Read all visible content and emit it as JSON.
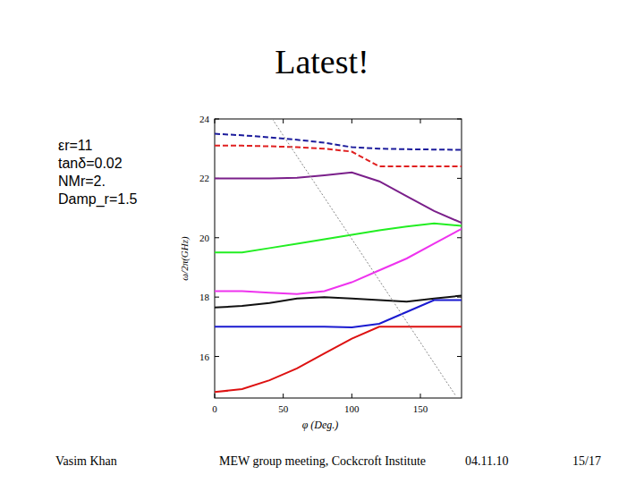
{
  "slide": {
    "title": "Latest!",
    "params": [
      "εr=11",
      "tanδ=0.02",
      "NMr=2.",
      "Damp_r=1.5"
    ],
    "footer": {
      "author": "Vasim Khan",
      "event": "MEW group meeting, Cockcroft Institute",
      "date": "04.11.10",
      "page": "15/17"
    }
  },
  "chart_data": {
    "type": "line",
    "x_label": "φ (Deg.)",
    "y_label": "ω/2π(GHz)",
    "xlim": [
      0,
      180
    ],
    "ylim": [
      14.6,
      24
    ],
    "xticks": [
      0,
      50,
      100,
      150
    ],
    "yticks": [
      16,
      18,
      20,
      22,
      24
    ],
    "grid": false,
    "series": [
      {
        "color": "#1c1c9c",
        "line_style": "dashed",
        "x": [
          0,
          20,
          40,
          60,
          80,
          100,
          120,
          140,
          160,
          180
        ],
        "values": [
          23.5,
          23.45,
          23.38,
          23.3,
          23.2,
          23.05,
          23.0,
          22.98,
          22.97,
          22.96
        ]
      },
      {
        "color": "#e02020",
        "line_style": "dashed",
        "x": [
          0,
          20,
          40,
          60,
          80,
          100,
          120,
          140,
          160,
          180
        ],
        "values": [
          23.1,
          23.1,
          23.08,
          23.05,
          23.0,
          22.9,
          22.4,
          22.4,
          22.4,
          22.4
        ]
      },
      {
        "color": "#7a1f8a",
        "line_style": "solid",
        "x": [
          0,
          20,
          40,
          60,
          80,
          100,
          120,
          140,
          160,
          180
        ],
        "values": [
          22.0,
          22.0,
          22.0,
          22.02,
          22.1,
          22.2,
          21.9,
          21.4,
          20.9,
          20.5
        ]
      },
      {
        "color": "#22ee22",
        "line_style": "solid",
        "x": [
          0,
          20,
          40,
          60,
          80,
          100,
          120,
          140,
          160,
          180
        ],
        "values": [
          19.5,
          19.5,
          19.65,
          19.8,
          19.95,
          20.1,
          20.25,
          20.38,
          20.48,
          20.4
        ]
      },
      {
        "color": "#ee33ee",
        "line_style": "solid",
        "x": [
          0,
          20,
          40,
          60,
          80,
          100,
          120,
          140,
          160,
          180
        ],
        "values": [
          18.2,
          18.2,
          18.15,
          18.1,
          18.2,
          18.5,
          18.9,
          19.3,
          19.8,
          20.3
        ]
      },
      {
        "color": "#111111",
        "line_style": "solid",
        "x": [
          0,
          20,
          40,
          60,
          80,
          100,
          120,
          140,
          160,
          180
        ],
        "values": [
          17.65,
          17.7,
          17.8,
          17.95,
          18.0,
          17.95,
          17.9,
          17.85,
          17.95,
          18.05
        ]
      },
      {
        "color": "#1a1ad0",
        "line_style": "solid",
        "x": [
          0,
          20,
          40,
          60,
          80,
          100,
          120,
          140,
          160,
          180
        ],
        "values": [
          17.0,
          17.0,
          17.0,
          17.0,
          17.0,
          16.98,
          17.1,
          17.5,
          17.9,
          17.9
        ]
      },
      {
        "color": "#dd1111",
        "line_style": "solid",
        "x": [
          0,
          20,
          40,
          60,
          80,
          100,
          120,
          140,
          160,
          180
        ],
        "values": [
          14.8,
          14.9,
          15.2,
          15.6,
          16.1,
          16.6,
          17.0,
          17.0,
          17.0,
          17.0
        ]
      },
      {
        "color": "#888888",
        "line_style": "dotted",
        "x": [
          42,
          176
        ],
        "values": [
          24,
          14.66
        ]
      }
    ]
  }
}
